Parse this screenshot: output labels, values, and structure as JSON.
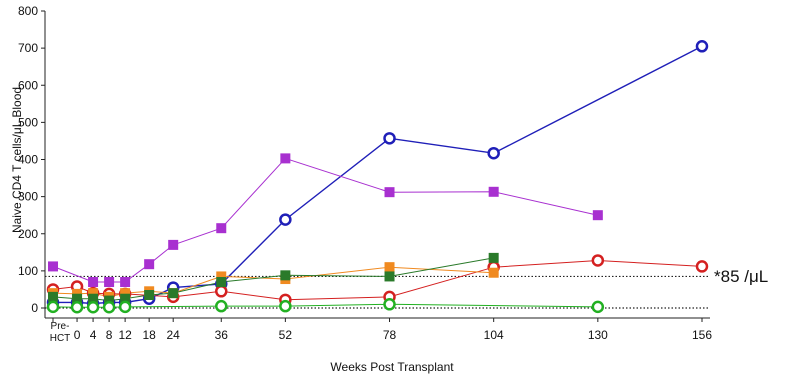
{
  "chart_data": {
    "type": "line",
    "title": "",
    "xlabel": "Weeks Post Transplant",
    "ylabel": "Naive CD4 T cells/μL Blood",
    "ylim": [
      0,
      800
    ],
    "yticks": [
      0,
      100,
      200,
      300,
      400,
      500,
      600,
      700,
      800
    ],
    "x_categories": [
      "Pre-HCT",
      "0",
      "4",
      "8",
      "12",
      "18",
      "24",
      "36",
      "52",
      "78",
      "104",
      "130",
      "156"
    ],
    "x_pre_label_line1": "Pre-",
    "x_pre_label_line2": "HCT",
    "x_pre_value": -6,
    "x_tick_values": [
      0,
      4,
      8,
      12,
      18,
      24,
      36,
      52,
      78,
      104,
      130,
      156
    ],
    "reference_lines": [
      {
        "value": 85,
        "label": "*85 /μL",
        "style": "dotted"
      },
      {
        "value": 0,
        "label": "",
        "style": "dotted"
      }
    ],
    "grid": false,
    "series": [
      {
        "color": "#1f1fb8",
        "marker": "circle",
        "points": [
          [
            -6,
            15
          ],
          [
            0,
            15
          ],
          [
            4,
            12
          ],
          [
            8,
            15
          ],
          [
            12,
            15
          ],
          [
            18,
            25
          ],
          [
            24,
            55
          ],
          [
            36,
            65
          ],
          [
            52,
            238
          ],
          [
            78,
            457
          ],
          [
            104,
            417
          ],
          [
            156,
            705
          ]
        ]
      },
      {
        "color": "#a830d0",
        "marker": "square",
        "points": [
          [
            -6,
            112
          ],
          [
            4,
            70
          ],
          [
            8,
            70
          ],
          [
            12,
            70
          ],
          [
            18,
            118
          ],
          [
            24,
            170
          ],
          [
            36,
            215
          ],
          [
            52,
            403
          ],
          [
            78,
            312
          ],
          [
            104,
            313
          ],
          [
            130,
            250
          ]
        ]
      },
      {
        "color": "#d42020",
        "marker": "circle",
        "points": [
          [
            -6,
            50
          ],
          [
            0,
            58
          ],
          [
            4,
            40
          ],
          [
            8,
            38
          ],
          [
            12,
            38
          ],
          [
            24,
            30
          ],
          [
            36,
            45
          ],
          [
            52,
            22
          ],
          [
            78,
            30
          ],
          [
            104,
            110
          ],
          [
            130,
            128
          ],
          [
            156,
            112
          ]
        ]
      },
      {
        "color": "#f08a20",
        "marker": "square",
        "points": [
          [
            -6,
            40
          ],
          [
            0,
            38
          ],
          [
            4,
            40
          ],
          [
            8,
            30
          ],
          [
            12,
            40
          ],
          [
            18,
            45
          ],
          [
            24,
            40
          ],
          [
            36,
            85
          ],
          [
            52,
            78
          ],
          [
            78,
            110
          ],
          [
            104,
            95
          ]
        ]
      },
      {
        "color": "#2a7a2a",
        "marker": "square",
        "points": [
          [
            -6,
            30
          ],
          [
            0,
            25
          ],
          [
            4,
            25
          ],
          [
            8,
            20
          ],
          [
            12,
            25
          ],
          [
            18,
            35
          ],
          [
            24,
            40
          ],
          [
            36,
            70
          ],
          [
            52,
            88
          ],
          [
            78,
            85
          ],
          [
            104,
            135
          ]
        ]
      },
      {
        "color": "#22b022",
        "marker": "circle",
        "points": [
          [
            -6,
            3
          ],
          [
            0,
            2
          ],
          [
            4,
            2
          ],
          [
            8,
            2
          ],
          [
            12,
            3
          ],
          [
            36,
            5
          ],
          [
            52,
            5
          ],
          [
            78,
            10
          ],
          [
            130,
            3
          ]
        ]
      }
    ]
  }
}
